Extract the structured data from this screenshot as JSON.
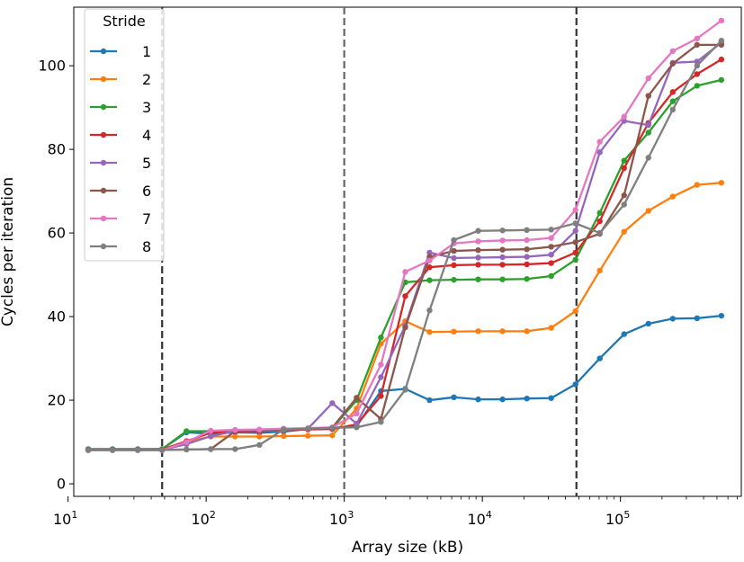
{
  "chart_data": {
    "type": "line",
    "xscale": "log",
    "xlabel": "Array size (kB)",
    "ylabel": "Cycles per iteration",
    "xlim": [
      11,
      750000
    ],
    "ylim": [
      -3,
      114
    ],
    "yticks": [
      0,
      20,
      40,
      60,
      80,
      100
    ],
    "xticks": [
      {
        "value": 10,
        "base": "10",
        "exp": "1"
      },
      {
        "value": 100,
        "base": "10",
        "exp": "2"
      },
      {
        "value": 1000,
        "base": "10",
        "exp": "3"
      },
      {
        "value": 10000,
        "base": "10",
        "exp": "4"
      },
      {
        "value": 100000,
        "base": "10",
        "exp": "5"
      }
    ],
    "vlines": [
      48,
      1000,
      48000
    ],
    "legend": {
      "title": "Stride",
      "position": "top-left"
    },
    "x": [
      14,
      21,
      32,
      48,
      72,
      108,
      162,
      243,
      364,
      546,
      819,
      1229,
      1843,
      2765,
      4147,
      6221,
      9331,
      13997,
      20995,
      31493,
      47239,
      70858,
      106288,
      159432,
      239148,
      358722,
      538083
    ],
    "series": [
      {
        "name": "1",
        "color": "#1f77b4",
        "values": [
          8.3,
          8.3,
          8.3,
          8.3,
          12.3,
          12.0,
          12.3,
          12.2,
          12.5,
          13.1,
          13.4,
          13.8,
          22.2,
          22.7,
          20.0,
          20.7,
          20.2,
          20.2,
          20.4,
          20.5,
          23.8,
          30.0,
          35.8,
          38.3,
          39.5,
          39.6,
          40.2
        ]
      },
      {
        "name": "2",
        "color": "#ff7f0e",
        "values": [
          8.2,
          8.2,
          8.2,
          8.2,
          10.0,
          11.3,
          11.3,
          11.3,
          11.4,
          11.5,
          11.6,
          18.0,
          33.5,
          38.9,
          36.3,
          36.4,
          36.5,
          36.5,
          36.5,
          37.3,
          41.3,
          51.0,
          60.3,
          65.3,
          68.7,
          71.5,
          72.0
        ]
      },
      {
        "name": "3",
        "color": "#2ca02c",
        "values": [
          8.2,
          8.2,
          8.2,
          8.3,
          12.6,
          12.6,
          12.7,
          12.8,
          13.0,
          13.2,
          13.3,
          20.0,
          35.0,
          48.2,
          48.7,
          48.8,
          48.9,
          48.9,
          49.0,
          49.7,
          53.6,
          64.8,
          77.3,
          84.0,
          91.5,
          95.2,
          96.6
        ]
      },
      {
        "name": "4",
        "color": "#d62728",
        "values": [
          8.2,
          8.2,
          8.2,
          8.2,
          10.2,
          12.2,
          12.5,
          12.6,
          12.9,
          13.0,
          13.1,
          14.2,
          21.0,
          44.9,
          51.8,
          52.3,
          52.4,
          52.4,
          52.5,
          52.8,
          55.3,
          62.8,
          75.5,
          86.3,
          93.7,
          98.0,
          101.5
        ]
      },
      {
        "name": "5",
        "color": "#9467bd",
        "values": [
          8.1,
          8.1,
          8.1,
          8.1,
          9.5,
          11.4,
          12.6,
          12.7,
          12.9,
          13.2,
          19.3,
          14.4,
          25.5,
          37.8,
          55.3,
          54.0,
          54.1,
          54.2,
          54.3,
          54.8,
          60.5,
          79.3,
          86.8,
          85.8,
          100.7,
          101.0,
          105.5
        ]
      },
      {
        "name": "6",
        "color": "#8c564b",
        "values": [
          8.1,
          8.1,
          8.1,
          8.1,
          8.2,
          8.3,
          12.6,
          12.8,
          13.0,
          13.2,
          13.4,
          20.6,
          15.5,
          37.4,
          54.3,
          55.7,
          55.9,
          56.0,
          56.1,
          56.7,
          57.8,
          59.8,
          69.0,
          92.8,
          100.5,
          105.0,
          105.0
        ]
      },
      {
        "name": "7",
        "color": "#e377c2",
        "values": [
          8.0,
          8.0,
          8.0,
          8.0,
          10.0,
          12.7,
          12.9,
          13.0,
          13.2,
          13.3,
          13.5,
          16.8,
          28.5,
          50.7,
          53.4,
          57.5,
          58.0,
          58.2,
          58.3,
          58.8,
          65.5,
          81.8,
          87.8,
          97.0,
          103.5,
          106.5,
          110.8
        ]
      },
      {
        "name": "8",
        "color": "#7f7f7f",
        "values": [
          8.1,
          8.1,
          8.1,
          8.1,
          8.2,
          8.3,
          8.3,
          9.3,
          13.0,
          13.2,
          13.4,
          13.5,
          14.8,
          22.5,
          41.5,
          58.3,
          60.5,
          60.6,
          60.7,
          60.8,
          62.3,
          60.0,
          66.8,
          78.0,
          89.5,
          100.0,
          106.0
        ]
      }
    ]
  }
}
